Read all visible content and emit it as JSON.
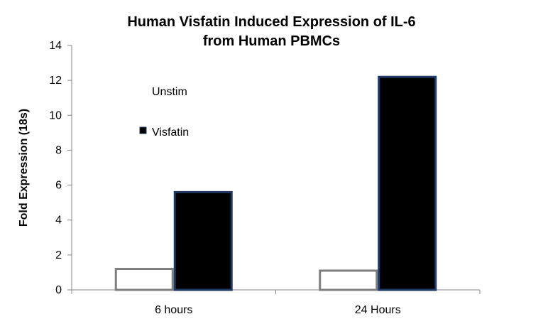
{
  "chart_data": {
    "type": "bar",
    "title_lines": [
      "Human Visfatin Induced Expression of IL-6",
      "from Human PBMCs"
    ],
    "xlabel": "",
    "ylabel": "Fold Expression (18s)",
    "categories": [
      "6 hours",
      "24 Hours"
    ],
    "series": [
      {
        "name": "Unstim",
        "values": [
          1.2,
          1.1
        ],
        "fill": "#ffffff",
        "stroke": "#7f7f7f"
      },
      {
        "name": "Visfatin",
        "values": [
          5.6,
          12.2
        ],
        "fill": "#000000",
        "stroke": "#1f3864"
      }
    ],
    "ylim": [
      0,
      14
    ],
    "yticks": [
      0,
      2,
      4,
      6,
      8,
      10,
      12,
      14
    ],
    "grid": false,
    "legend_position": "upper-left, inside plot area"
  }
}
